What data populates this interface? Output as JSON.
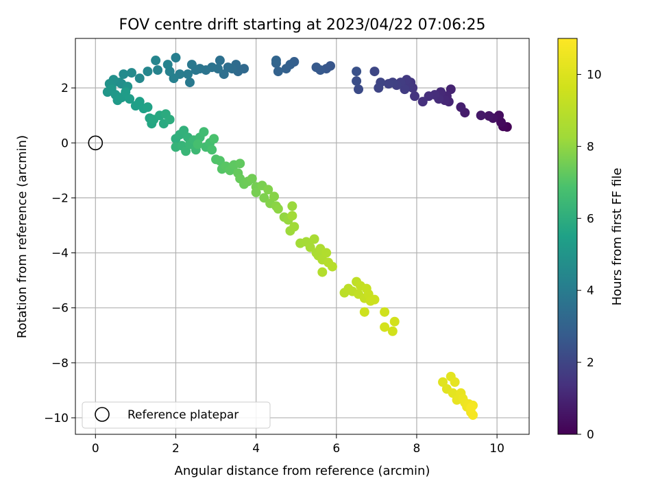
{
  "chart_data": {
    "type": "scatter",
    "title": "FOV centre drift starting at 2023/04/22 07:06:25",
    "xlabel": "Angular distance from reference (arcmin)",
    "ylabel": "Rotation from reference (arcmin)",
    "xlim": [
      -0.5,
      10.8
    ],
    "ylim": [
      -10.6,
      3.8
    ],
    "xticks": [
      0,
      2,
      4,
      6,
      8,
      10
    ],
    "yticks": [
      -10,
      -8,
      -6,
      -4,
      -2,
      0,
      2
    ],
    "grid": true,
    "legend": {
      "placement": "lower-left",
      "entries": [
        "Reference platepar"
      ]
    },
    "reference_point": {
      "name": "Reference platepar",
      "x": 0,
      "y": 0
    },
    "colorbar": {
      "label": "Hours from first FF file",
      "colormap": "viridis",
      "range": [
        0,
        11
      ],
      "ticks": [
        0,
        2,
        4,
        6,
        8,
        10
      ]
    },
    "points": [
      {
        "x": 10.25,
        "y": 0.58,
        "t": 0.05
      },
      {
        "x": 10.15,
        "y": 0.6,
        "t": 0.15
      },
      {
        "x": 10.1,
        "y": 0.75,
        "t": 0.25
      },
      {
        "x": 10.05,
        "y": 1.0,
        "t": 0.35
      },
      {
        "x": 9.9,
        "y": 0.9,
        "t": 0.45
      },
      {
        "x": 9.8,
        "y": 0.98,
        "t": 0.55
      },
      {
        "x": 9.6,
        "y": 1.0,
        "t": 0.65
      },
      {
        "x": 9.2,
        "y": 1.1,
        "t": 0.75
      },
      {
        "x": 9.1,
        "y": 1.3,
        "t": 0.85
      },
      {
        "x": 8.85,
        "y": 1.95,
        "t": 0.95
      },
      {
        "x": 8.8,
        "y": 1.5,
        "t": 1.0
      },
      {
        "x": 8.75,
        "y": 1.7,
        "t": 1.05
      },
      {
        "x": 8.7,
        "y": 1.55,
        "t": 1.1
      },
      {
        "x": 8.6,
        "y": 1.85,
        "t": 1.15
      },
      {
        "x": 8.55,
        "y": 1.6,
        "t": 1.2
      },
      {
        "x": 8.45,
        "y": 1.75,
        "t": 1.25
      },
      {
        "x": 8.3,
        "y": 1.7,
        "t": 1.3
      },
      {
        "x": 8.15,
        "y": 1.5,
        "t": 1.35
      },
      {
        "x": 7.95,
        "y": 1.7,
        "t": 1.45
      },
      {
        "x": 7.9,
        "y": 2.0,
        "t": 1.5
      },
      {
        "x": 7.85,
        "y": 2.2,
        "t": 1.55
      },
      {
        "x": 7.8,
        "y": 2.05,
        "t": 1.6
      },
      {
        "x": 7.75,
        "y": 2.3,
        "t": 1.65
      },
      {
        "x": 7.7,
        "y": 1.95,
        "t": 1.7
      },
      {
        "x": 7.6,
        "y": 2.2,
        "t": 1.75
      },
      {
        "x": 7.5,
        "y": 2.1,
        "t": 1.8
      },
      {
        "x": 7.4,
        "y": 2.2,
        "t": 1.85
      },
      {
        "x": 7.3,
        "y": 2.15,
        "t": 1.9
      },
      {
        "x": 7.1,
        "y": 2.2,
        "t": 1.95
      },
      {
        "x": 7.05,
        "y": 2.0,
        "t": 2.0
      },
      {
        "x": 6.95,
        "y": 2.6,
        "t": 2.05
      },
      {
        "x": 6.55,
        "y": 1.95,
        "t": 2.2
      },
      {
        "x": 6.5,
        "y": 2.25,
        "t": 2.3
      },
      {
        "x": 6.5,
        "y": 2.6,
        "t": 2.4
      },
      {
        "x": 5.85,
        "y": 2.8,
        "t": 2.55
      },
      {
        "x": 5.75,
        "y": 2.7,
        "t": 2.6
      },
      {
        "x": 5.6,
        "y": 2.65,
        "t": 2.65
      },
      {
        "x": 5.5,
        "y": 2.75,
        "t": 2.7
      },
      {
        "x": 4.95,
        "y": 2.95,
        "t": 2.85
      },
      {
        "x": 4.85,
        "y": 2.85,
        "t": 2.9
      },
      {
        "x": 4.75,
        "y": 2.7,
        "t": 2.95
      },
      {
        "x": 4.55,
        "y": 2.6,
        "t": 3.0
      },
      {
        "x": 4.5,
        "y": 2.9,
        "t": 3.05
      },
      {
        "x": 4.5,
        "y": 3.0,
        "t": 3.1
      },
      {
        "x": 3.7,
        "y": 2.7,
        "t": 3.25
      },
      {
        "x": 3.55,
        "y": 2.6,
        "t": 3.3
      },
      {
        "x": 3.5,
        "y": 2.85,
        "t": 3.35
      },
      {
        "x": 3.4,
        "y": 2.7,
        "t": 3.4
      },
      {
        "x": 3.3,
        "y": 2.75,
        "t": 3.45
      },
      {
        "x": 3.2,
        "y": 2.5,
        "t": 3.5
      },
      {
        "x": 3.1,
        "y": 3.0,
        "t": 3.55
      },
      {
        "x": 3.05,
        "y": 2.7,
        "t": 3.6
      },
      {
        "x": 2.9,
        "y": 2.75,
        "t": 3.65
      },
      {
        "x": 2.75,
        "y": 2.65,
        "t": 3.7
      },
      {
        "x": 2.6,
        "y": 2.7,
        "t": 3.75
      },
      {
        "x": 2.5,
        "y": 2.65,
        "t": 3.8
      },
      {
        "x": 2.4,
        "y": 2.85,
        "t": 3.85
      },
      {
        "x": 2.35,
        "y": 2.2,
        "t": 3.9
      },
      {
        "x": 2.3,
        "y": 2.5,
        "t": 3.95
      },
      {
        "x": 2.1,
        "y": 2.5,
        "t": 4.05
      },
      {
        "x": 2.0,
        "y": 3.1,
        "t": 4.1
      },
      {
        "x": 1.95,
        "y": 2.35,
        "t": 4.15
      },
      {
        "x": 1.85,
        "y": 2.6,
        "t": 4.2
      },
      {
        "x": 1.8,
        "y": 2.85,
        "t": 4.25
      },
      {
        "x": 1.55,
        "y": 2.65,
        "t": 4.3
      },
      {
        "x": 1.5,
        "y": 3.0,
        "t": 4.35
      },
      {
        "x": 1.3,
        "y": 2.6,
        "t": 4.4
      },
      {
        "x": 1.1,
        "y": 2.35,
        "t": 4.5
      },
      {
        "x": 0.9,
        "y": 2.55,
        "t": 4.55
      },
      {
        "x": 0.7,
        "y": 2.5,
        "t": 4.6
      },
      {
        "x": 0.65,
        "y": 2.15,
        "t": 4.7
      },
      {
        "x": 0.6,
        "y": 2.2,
        "t": 4.75
      },
      {
        "x": 0.45,
        "y": 2.3,
        "t": 4.8
      },
      {
        "x": 0.4,
        "y": 2.05,
        "t": 4.85
      },
      {
        "x": 0.35,
        "y": 2.15,
        "t": 4.9
      },
      {
        "x": 0.8,
        "y": 2.05,
        "t": 4.95
      },
      {
        "x": 0.3,
        "y": 1.85,
        "t": 5.05
      },
      {
        "x": 0.4,
        "y": 1.95,
        "t": 5.1
      },
      {
        "x": 0.5,
        "y": 1.75,
        "t": 5.15
      },
      {
        "x": 0.55,
        "y": 1.55,
        "t": 5.2
      },
      {
        "x": 0.65,
        "y": 1.65,
        "t": 5.25
      },
      {
        "x": 0.75,
        "y": 1.85,
        "t": 5.3
      },
      {
        "x": 0.85,
        "y": 1.6,
        "t": 5.35
      },
      {
        "x": 1.0,
        "y": 1.35,
        "t": 5.4
      },
      {
        "x": 1.1,
        "y": 1.5,
        "t": 5.45
      },
      {
        "x": 1.2,
        "y": 1.25,
        "t": 5.5
      },
      {
        "x": 1.3,
        "y": 1.3,
        "t": 5.55
      },
      {
        "x": 1.35,
        "y": 0.9,
        "t": 5.65
      },
      {
        "x": 1.4,
        "y": 0.7,
        "t": 5.7
      },
      {
        "x": 1.45,
        "y": 0.85,
        "t": 5.75
      },
      {
        "x": 1.6,
        "y": 1.0,
        "t": 5.8
      },
      {
        "x": 1.7,
        "y": 0.7,
        "t": 5.85
      },
      {
        "x": 1.75,
        "y": 1.05,
        "t": 5.9
      },
      {
        "x": 1.85,
        "y": 0.85,
        "t": 5.95
      },
      {
        "x": 2.0,
        "y": 0.15,
        "t": 6.05
      },
      {
        "x": 2.1,
        "y": 0.3,
        "t": 6.1
      },
      {
        "x": 2.2,
        "y": 0.45,
        "t": 6.15
      },
      {
        "x": 2.3,
        "y": 0.2,
        "t": 6.2
      },
      {
        "x": 2.0,
        "y": -0.15,
        "t": 6.25
      },
      {
        "x": 2.15,
        "y": -0.1,
        "t": 6.3
      },
      {
        "x": 2.25,
        "y": -0.3,
        "t": 6.35
      },
      {
        "x": 2.35,
        "y": -0.05,
        "t": 6.4
      },
      {
        "x": 2.45,
        "y": 0.1,
        "t": 6.45
      },
      {
        "x": 2.5,
        "y": -0.25,
        "t": 6.5
      },
      {
        "x": 2.6,
        "y": 0.2,
        "t": 6.55
      },
      {
        "x": 2.7,
        "y": 0.4,
        "t": 6.6
      },
      {
        "x": 2.75,
        "y": -0.15,
        "t": 6.65
      },
      {
        "x": 2.85,
        "y": 0.0,
        "t": 6.7
      },
      {
        "x": 2.55,
        "y": -0.05,
        "t": 6.75
      },
      {
        "x": 2.9,
        "y": -0.25,
        "t": 6.8
      },
      {
        "x": 2.95,
        "y": 0.15,
        "t": 6.85
      },
      {
        "x": 3.0,
        "y": -0.6,
        "t": 6.95
      },
      {
        "x": 3.1,
        "y": -0.65,
        "t": 7.0
      },
      {
        "x": 3.15,
        "y": -0.95,
        "t": 7.05
      },
      {
        "x": 3.25,
        "y": -0.85,
        "t": 7.1
      },
      {
        "x": 3.35,
        "y": -1.0,
        "t": 7.15
      },
      {
        "x": 3.45,
        "y": -0.8,
        "t": 7.2
      },
      {
        "x": 3.6,
        "y": -0.75,
        "t": 7.25
      },
      {
        "x": 3.55,
        "y": -1.1,
        "t": 7.3
      },
      {
        "x": 3.6,
        "y": -1.3,
        "t": 7.35
      },
      {
        "x": 3.7,
        "y": -1.5,
        "t": 7.4
      },
      {
        "x": 3.8,
        "y": -1.4,
        "t": 7.45
      },
      {
        "x": 3.9,
        "y": -1.3,
        "t": 7.5
      },
      {
        "x": 4.0,
        "y": -1.6,
        "t": 7.55
      },
      {
        "x": 4.0,
        "y": -1.8,
        "t": 7.6
      },
      {
        "x": 4.15,
        "y": -1.55,
        "t": 7.65
      },
      {
        "x": 4.2,
        "y": -2.0,
        "t": 7.7
      },
      {
        "x": 4.3,
        "y": -1.7,
        "t": 7.75
      },
      {
        "x": 4.35,
        "y": -2.2,
        "t": 7.8
      },
      {
        "x": 4.45,
        "y": -1.95,
        "t": 7.85
      },
      {
        "x": 4.5,
        "y": -2.3,
        "t": 7.9
      },
      {
        "x": 4.55,
        "y": -2.4,
        "t": 7.95
      },
      {
        "x": 4.7,
        "y": -2.7,
        "t": 8.05
      },
      {
        "x": 4.8,
        "y": -2.8,
        "t": 8.1
      },
      {
        "x": 4.9,
        "y": -2.3,
        "t": 8.15
      },
      {
        "x": 4.85,
        "y": -3.2,
        "t": 8.2
      },
      {
        "x": 4.95,
        "y": -3.05,
        "t": 8.25
      },
      {
        "x": 4.9,
        "y": -2.65,
        "t": 8.3
      },
      {
        "x": 5.1,
        "y": -3.65,
        "t": 8.35
      },
      {
        "x": 5.25,
        "y": -3.6,
        "t": 8.4
      },
      {
        "x": 5.35,
        "y": -3.8,
        "t": 8.45
      },
      {
        "x": 5.45,
        "y": -3.5,
        "t": 8.5
      },
      {
        "x": 5.5,
        "y": -4.0,
        "t": 8.55
      },
      {
        "x": 5.55,
        "y": -4.1,
        "t": 8.6
      },
      {
        "x": 5.6,
        "y": -3.85,
        "t": 8.65
      },
      {
        "x": 5.65,
        "y": -4.25,
        "t": 8.7
      },
      {
        "x": 5.75,
        "y": -4.0,
        "t": 8.75
      },
      {
        "x": 5.65,
        "y": -4.7,
        "t": 8.8
      },
      {
        "x": 5.8,
        "y": -4.35,
        "t": 8.85
      },
      {
        "x": 5.9,
        "y": -4.5,
        "t": 8.9
      },
      {
        "x": 6.2,
        "y": -5.45,
        "t": 9.0
      },
      {
        "x": 6.3,
        "y": -5.3,
        "t": 9.05
      },
      {
        "x": 6.4,
        "y": -5.4,
        "t": 9.1
      },
      {
        "x": 6.5,
        "y": -5.05,
        "t": 9.15
      },
      {
        "x": 6.55,
        "y": -5.5,
        "t": 9.2
      },
      {
        "x": 6.6,
        "y": -5.2,
        "t": 9.25
      },
      {
        "x": 6.7,
        "y": -5.65,
        "t": 9.3
      },
      {
        "x": 6.75,
        "y": -5.3,
        "t": 9.35
      },
      {
        "x": 6.8,
        "y": -5.5,
        "t": 9.4
      },
      {
        "x": 6.85,
        "y": -5.75,
        "t": 9.45
      },
      {
        "x": 6.95,
        "y": -5.7,
        "t": 9.5
      },
      {
        "x": 6.7,
        "y": -6.15,
        "t": 9.55
      },
      {
        "x": 7.2,
        "y": -6.15,
        "t": 9.6
      },
      {
        "x": 7.4,
        "y": -6.85,
        "t": 9.65
      },
      {
        "x": 7.45,
        "y": -6.5,
        "t": 9.7
      },
      {
        "x": 7.2,
        "y": -6.7,
        "t": 9.75
      },
      {
        "x": 8.65,
        "y": -8.7,
        "t": 10.1
      },
      {
        "x": 8.75,
        "y": -8.95,
        "t": 10.15
      },
      {
        "x": 8.85,
        "y": -8.5,
        "t": 10.2
      },
      {
        "x": 8.9,
        "y": -9.1,
        "t": 10.25
      },
      {
        "x": 8.95,
        "y": -8.7,
        "t": 10.3
      },
      {
        "x": 9.0,
        "y": -9.35,
        "t": 10.35
      },
      {
        "x": 9.1,
        "y": -9.1,
        "t": 10.4
      },
      {
        "x": 9.15,
        "y": -9.3,
        "t": 10.45
      },
      {
        "x": 9.2,
        "y": -9.45,
        "t": 10.5
      },
      {
        "x": 9.25,
        "y": -9.6,
        "t": 10.55
      },
      {
        "x": 9.3,
        "y": -9.5,
        "t": 10.6
      },
      {
        "x": 9.35,
        "y": -9.8,
        "t": 10.65
      },
      {
        "x": 9.4,
        "y": -9.55,
        "t": 10.7
      },
      {
        "x": 9.4,
        "y": -9.9,
        "t": 10.75
      },
      {
        "x": 9.35,
        "y": -9.65,
        "t": 10.8
      }
    ]
  }
}
